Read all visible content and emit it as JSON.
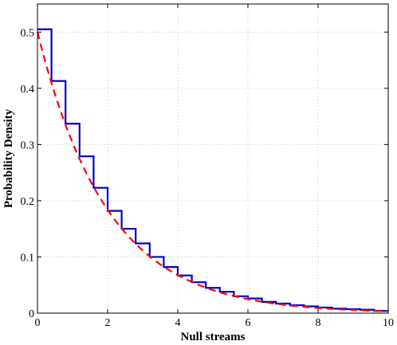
{
  "chart_data": {
    "type": "line",
    "xlabel": "Null streams",
    "ylabel": "Probability Density",
    "xlim": [
      0,
      10
    ],
    "ylim": [
      0,
      0.55
    ],
    "x_ticks": [
      0,
      2,
      4,
      6,
      8,
      10
    ],
    "y_ticks": [
      0,
      0.1,
      0.2,
      0.3,
      0.4,
      0.5
    ],
    "x_tick_labels": [
      "0",
      "2",
      "4",
      "6",
      "8",
      "10"
    ],
    "y_tick_labels": [
      "0",
      "0.1",
      "0.2",
      "0.3",
      "0.4",
      "0.5"
    ],
    "grid": true,
    "series": [
      {
        "style": "step-histogram",
        "color": "#0000cc",
        "bin_edges": [
          0,
          0.4,
          0.8,
          1.2,
          1.6,
          2.0,
          2.4,
          2.8,
          3.2,
          3.6,
          4.0,
          4.4,
          4.8,
          5.2,
          5.6,
          6.0,
          6.4,
          6.8,
          7.2,
          7.6,
          8.0,
          8.4,
          8.8,
          9.2,
          9.6,
          10.0
        ],
        "values": [
          0.505,
          0.413,
          0.337,
          0.279,
          0.223,
          0.182,
          0.15,
          0.124,
          0.1,
          0.082,
          0.067,
          0.055,
          0.045,
          0.038,
          0.03,
          0.026,
          0.02,
          0.017,
          0.014,
          0.012,
          0.01,
          0.008,
          0.007,
          0.006,
          0.004
        ]
      },
      {
        "style": "dashed-curve",
        "color": "#ff0000",
        "function": "0.5*exp(-0.5*x)"
      }
    ]
  }
}
